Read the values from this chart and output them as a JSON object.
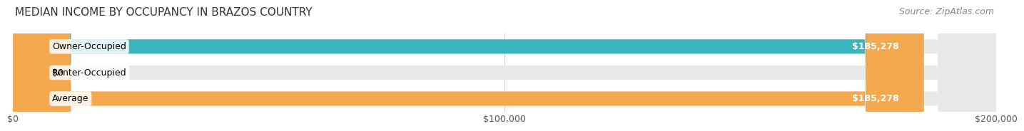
{
  "title": "MEDIAN INCOME BY OCCUPANCY IN BRAZOS COUNTRY",
  "source": "Source: ZipAtlas.com",
  "categories": [
    "Owner-Occupied",
    "Renter-Occupied",
    "Average"
  ],
  "values": [
    185278,
    0,
    185278
  ],
  "bar_colors": [
    "#3ab5bd",
    "#c4a8d4",
    "#f5a94e"
  ],
  "bar_bg_color": "#f0f0f0",
  "label_values": [
    "$185,278",
    "$0",
    "$185,278"
  ],
  "xlim": [
    0,
    200000
  ],
  "xticks": [
    0,
    100000,
    200000
  ],
  "xtick_labels": [
    "$0",
    "$100,000",
    "$200,000"
  ],
  "bar_height": 0.55,
  "background_color": "#ffffff",
  "title_fontsize": 11,
  "source_fontsize": 9,
  "label_fontsize": 9,
  "tick_fontsize": 9
}
